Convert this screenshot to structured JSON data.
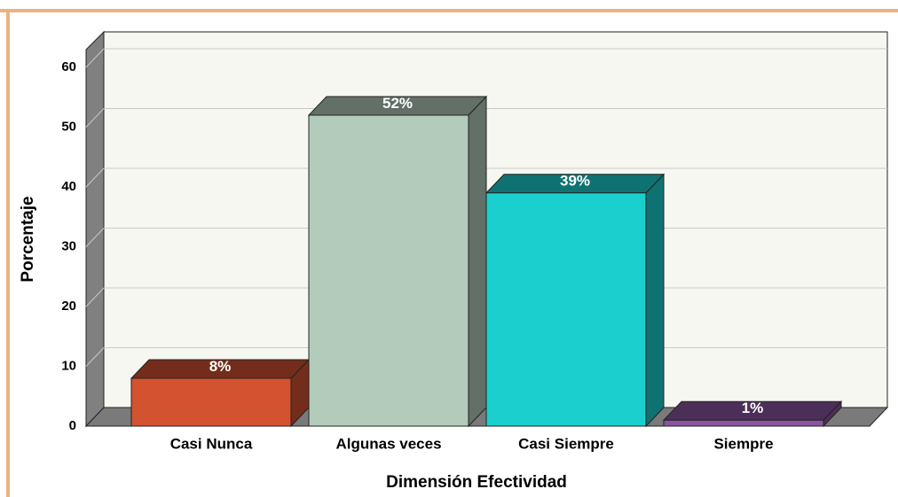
{
  "chart_data": {
    "type": "bar3d",
    "x_label": "Dimensión Efectividad",
    "y_label": "Porcentaje",
    "categories": [
      "Casi Nunca",
      "Algunas veces",
      "Casi Siempre",
      "Siempre"
    ],
    "values": [
      8,
      52,
      39,
      1
    ],
    "value_labels": [
      "8%",
      "52%",
      "39%",
      "1%"
    ],
    "colors": [
      "#d35230",
      "#b3cbbb",
      "#1ccfcf",
      "#8a55a0"
    ],
    "ylim": [
      0,
      60
    ],
    "yticks": [
      0,
      10,
      20,
      30,
      40,
      50,
      60
    ],
    "grid": true
  }
}
